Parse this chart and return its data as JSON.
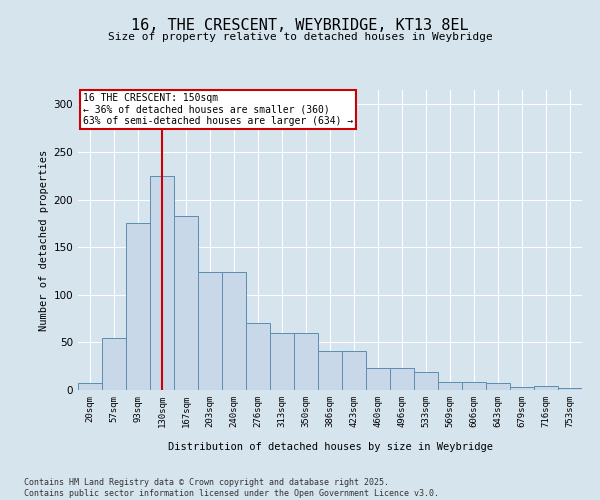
{
  "title_line1": "16, THE CRESCENT, WEYBRIDGE, KT13 8EL",
  "title_line2": "Size of property relative to detached houses in Weybridge",
  "xlabel": "Distribution of detached houses by size in Weybridge",
  "ylabel": "Number of detached properties",
  "categories": [
    "20sqm",
    "57sqm",
    "93sqm",
    "130sqm",
    "167sqm",
    "203sqm",
    "240sqm",
    "276sqm",
    "313sqm",
    "350sqm",
    "386sqm",
    "423sqm",
    "460sqm",
    "496sqm",
    "533sqm",
    "569sqm",
    "606sqm",
    "643sqm",
    "679sqm",
    "716sqm",
    "753sqm"
  ],
  "values": [
    7,
    55,
    175,
    225,
    183,
    124,
    124,
    70,
    60,
    60,
    41,
    41,
    23,
    23,
    19,
    8,
    8,
    7,
    3,
    4,
    2
  ],
  "bar_color": "#c8d8e8",
  "bar_edge_color": "#5b8db0",
  "vline_x": 3,
  "vline_color": "#cc0000",
  "annotation_text": "16 THE CRESCENT: 150sqm\n← 36% of detached houses are smaller (360)\n63% of semi-detached houses are larger (634) →",
  "annotation_box_color": "#ffffff",
  "annotation_box_edge": "#cc0000",
  "background_color": "#d6e4ee",
  "plot_bg_color": "#d6e4ee",
  "footer_line1": "Contains HM Land Registry data © Crown copyright and database right 2025.",
  "footer_line2": "Contains public sector information licensed under the Open Government Licence v3.0.",
  "ylim": [
    0,
    315
  ],
  "yticks": [
    0,
    50,
    100,
    150,
    200,
    250,
    300
  ]
}
